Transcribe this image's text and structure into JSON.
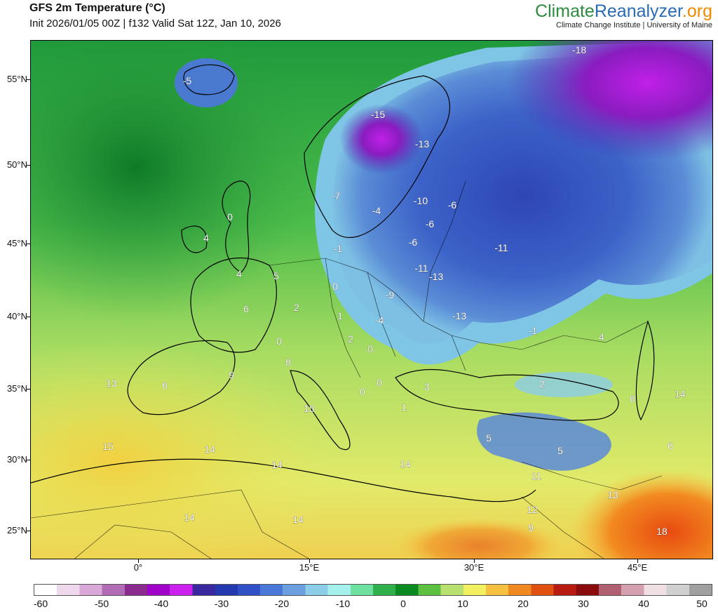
{
  "header": {
    "title": "GFS 2m Temperature (°C)",
    "subtitle": "Init 2026/01/05 00Z | f132 Valid Sat 12Z, Jan 10, 2026",
    "brand_part1": "Climate",
    "brand_part2": "Reanalyzer",
    "brand_part3": ".org",
    "brand_sub": "Climate Change Institute | University of Maine"
  },
  "axes": {
    "lat_labels": [
      "55°N",
      "50°N",
      "45°N",
      "40°N",
      "35°N",
      "30°N",
      "25°N"
    ],
    "lon_labels": [
      "0°",
      "15°E",
      "30°E",
      "45°E"
    ]
  },
  "colorbar": {
    "ticks": [
      "-60",
      "-50",
      "-40",
      "-30",
      "-20",
      "-10",
      "0",
      "10",
      "20",
      "30",
      "40",
      "50"
    ],
    "stops": [
      "#ffffff",
      "#f0d8ec",
      "#d9a8d8",
      "#b26bb5",
      "#8b2a8f",
      "#a000c8",
      "#cc20ee",
      "#3a28a0",
      "#2438b0",
      "#3050c8",
      "#4a78d8",
      "#6aa0e0",
      "#8ccde8",
      "#a6f0ec",
      "#6ee0a0",
      "#2fb04a",
      "#0a8a20",
      "#5cc040",
      "#b8e070",
      "#f2f060",
      "#f6c040",
      "#f08a20",
      "#e05010",
      "#b81c10",
      "#8a0c0c",
      "#b06070",
      "#d4a0b0",
      "#f0e0e4",
      "#d0d0d0",
      "#a0a0a0"
    ]
  },
  "map_labels": [
    "-18",
    "-5",
    "-15",
    "-13",
    "-7",
    "-10",
    "-6",
    "-4",
    "0",
    "-6",
    "-6",
    "-11",
    "-1",
    "4",
    "-11",
    "-13",
    "4",
    "5",
    "0",
    "-9",
    "6",
    "2",
    "1",
    "-13",
    "-4",
    "-1",
    "0",
    "2",
    "4",
    "0",
    "8",
    "13",
    "6",
    "9",
    "0",
    "0",
    "3",
    "2",
    "6",
    "14",
    "1",
    "10",
    "15",
    "14",
    "14",
    "5",
    "5",
    "6",
    "14",
    "11",
    "13",
    "14",
    "14",
    "12",
    "9",
    "18"
  ]
}
